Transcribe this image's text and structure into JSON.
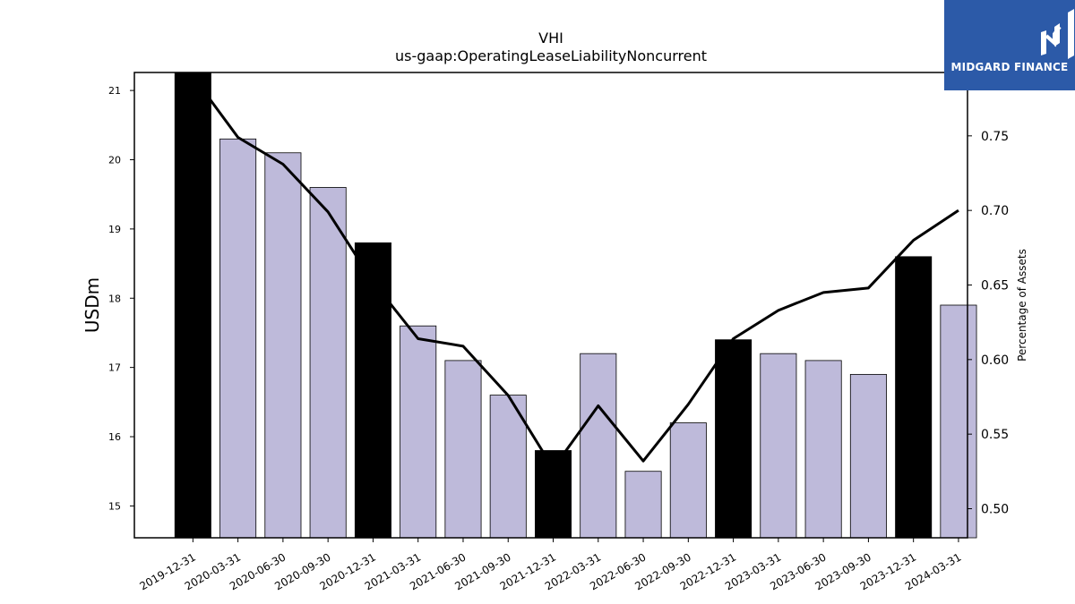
{
  "chart_data": {
    "type": "bar",
    "title": "VHI",
    "subtitle": "us-gaap:OperatingLeaseLiabilityNoncurrent",
    "ylabel": "USDm",
    "y2label": "Percentage of Assets",
    "categories": [
      "2019-12-31",
      "2020-03-31",
      "2020-06-30",
      "2020-09-30",
      "2020-12-31",
      "2021-03-31",
      "2021-06-30",
      "2021-09-30",
      "2021-12-31",
      "2022-03-31",
      "2022-06-30",
      "2022-09-30",
      "2022-12-31",
      "2023-03-31",
      "2023-06-30",
      "2023-09-30",
      "2023-12-31",
      "2024-03-31"
    ],
    "series": [
      {
        "name": "",
        "type": "bar",
        "values": [
          21.3,
          20.3,
          20.1,
          19.6,
          18.8,
          17.6,
          17.1,
          16.6,
          15.8,
          17.2,
          15.5,
          16.2,
          17.4,
          17.2,
          17.1,
          16.9,
          18.6,
          17.9
        ],
        "highlight": [
          true,
          false,
          false,
          false,
          true,
          false,
          false,
          false,
          true,
          false,
          false,
          false,
          true,
          false,
          false,
          false,
          true,
          false
        ]
      },
      {
        "name": "",
        "type": "line",
        "axis": "right",
        "values": [
          0.79,
          0.749,
          0.731,
          0.699,
          0.652,
          0.614,
          0.609,
          0.576,
          0.527,
          0.569,
          0.532,
          0.57,
          0.614,
          0.633,
          0.645,
          0.648,
          0.68,
          0.7
        ]
      }
    ],
    "ylim": [
      14.54,
      21.26
    ],
    "y2lim": [
      0.4805,
      0.7925
    ],
    "yticks": [
      "15",
      "16",
      "17",
      "18",
      "19",
      "20",
      "21"
    ],
    "y2ticks": [
      "0.50",
      "0.55",
      "0.60",
      "0.65",
      "0.70",
      "0.75"
    ],
    "grid": false,
    "legend": "none",
    "colors": {
      "bar": "#bebada",
      "bar_highlight": "#000000",
      "line": "#000000",
      "logo_bg": "#2c5aa8"
    }
  },
  "logo": {
    "text": "MIDGARD FINANCE",
    "icon": "midgard-logo-icon"
  }
}
